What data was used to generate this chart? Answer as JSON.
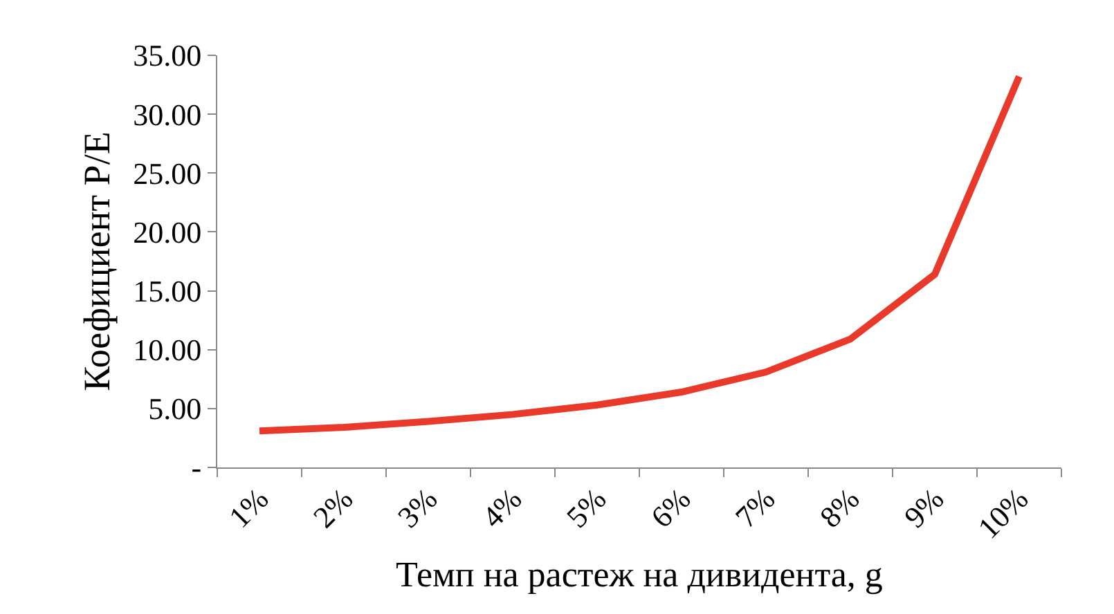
{
  "chart_data": {
    "type": "line",
    "xlabel": "Темп на растеж на дивидента, g",
    "ylabel": "Коефициент P/E",
    "categories": [
      "1%",
      "2%",
      "3%",
      "4%",
      "5%",
      "6%",
      "7%",
      "8%",
      "9%",
      "10%"
    ],
    "series": [
      {
        "color": "#e8392a",
        "values": [
          3.1,
          3.4,
          3.9,
          4.5,
          5.3,
          6.4,
          8.1,
          10.9,
          16.4,
          33.2
        ]
      }
    ],
    "ylim": [
      0,
      35
    ],
    "yticks": [
      {
        "value": 0,
        "label": "-"
      },
      {
        "value": 5,
        "label": "5.00"
      },
      {
        "value": 10,
        "label": "10.00"
      },
      {
        "value": 15,
        "label": "15.00"
      },
      {
        "value": 20,
        "label": "20.00"
      },
      {
        "value": 25,
        "label": "25.00"
      },
      {
        "value": 30,
        "label": "30.00"
      },
      {
        "value": 35,
        "label": "35.00"
      }
    ],
    "marker": "none",
    "line_style": "solid"
  }
}
